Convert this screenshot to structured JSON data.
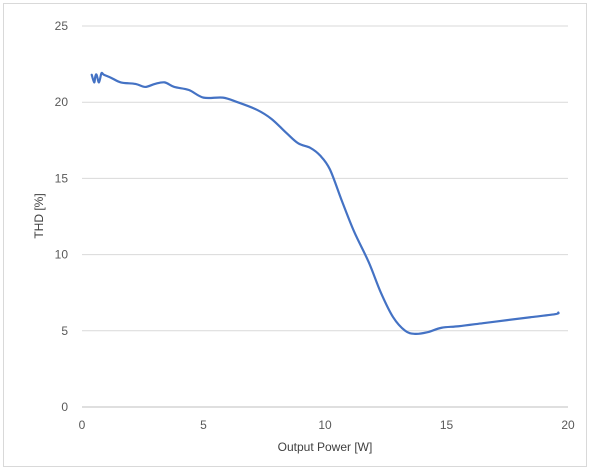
{
  "chart_data": {
    "type": "line",
    "title": "",
    "xlabel": "Output Power [W]",
    "ylabel": "THD [%]",
    "xlim": [
      0,
      20
    ],
    "ylim": [
      0,
      25
    ],
    "x_ticks": [
      "0",
      "5",
      "10",
      "15",
      "20"
    ],
    "y_ticks": [
      "0",
      "5",
      "10",
      "15",
      "20",
      "25"
    ],
    "grid": "horizontal",
    "legend": "none",
    "series": [
      {
        "color": "#4472c4",
        "points": [
          [
            0.4,
            21.8
          ],
          [
            0.5,
            21.3
          ],
          [
            0.55,
            21.7
          ],
          [
            0.6,
            21.8
          ],
          [
            0.7,
            21.3
          ],
          [
            0.8,
            21.9
          ],
          [
            0.9,
            21.8
          ],
          [
            1.2,
            21.6
          ],
          [
            1.6,
            21.3
          ],
          [
            2.2,
            21.2
          ],
          [
            2.6,
            21.0
          ],
          [
            3.0,
            21.2
          ],
          [
            3.4,
            21.3
          ],
          [
            3.8,
            21.0
          ],
          [
            4.4,
            20.8
          ],
          [
            5.0,
            20.3
          ],
          [
            5.8,
            20.3
          ],
          [
            6.4,
            20.0
          ],
          [
            7.2,
            19.5
          ],
          [
            7.8,
            18.9
          ],
          [
            8.4,
            18.0
          ],
          [
            8.9,
            17.3
          ],
          [
            9.4,
            17.0
          ],
          [
            9.8,
            16.5
          ],
          [
            10.2,
            15.6
          ],
          [
            10.7,
            13.5
          ],
          [
            11.2,
            11.5
          ],
          [
            11.8,
            9.5
          ],
          [
            12.3,
            7.5
          ],
          [
            12.8,
            5.9
          ],
          [
            13.3,
            5.0
          ],
          [
            13.7,
            4.8
          ],
          [
            14.2,
            4.9
          ],
          [
            14.8,
            5.2
          ],
          [
            15.5,
            5.3
          ],
          [
            16.5,
            5.5
          ],
          [
            17.5,
            5.7
          ],
          [
            18.5,
            5.9
          ],
          [
            19.5,
            6.1
          ],
          [
            19.6,
            6.2
          ]
        ]
      }
    ]
  }
}
